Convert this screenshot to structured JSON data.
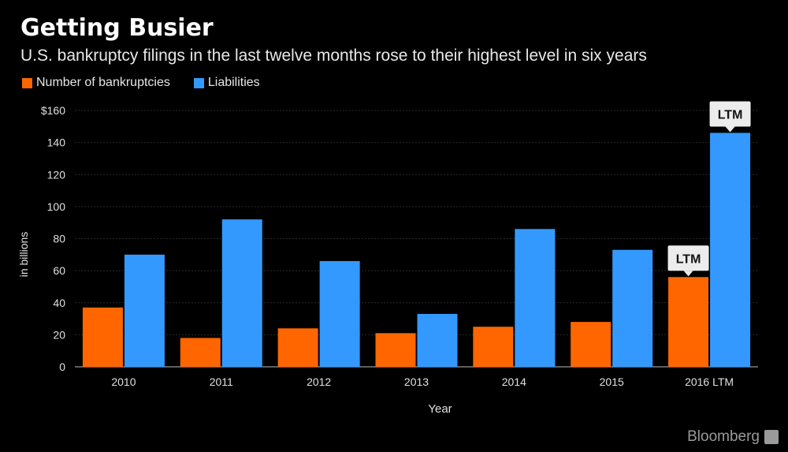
{
  "title": "Getting Busier",
  "subtitle": "U.S. bankruptcy filings in the last twelve months rose to their highest level in six years",
  "brand": "Bloomberg",
  "colors": {
    "bankruptcies": "#ff6600",
    "liabilities": "#3399ff",
    "background": "#000000"
  },
  "chart_data": {
    "type": "bar",
    "title": "Getting Busier",
    "subtitle": "U.S. bankruptcy filings in the last twelve months rose to their highest level in six years",
    "xlabel": "Year",
    "ylabel": "in billions",
    "ylim": [
      0,
      160
    ],
    "yticks": [
      "0",
      "20",
      "40",
      "60",
      "80",
      "100",
      "120",
      "140",
      "$160"
    ],
    "ytick_values": [
      0,
      20,
      40,
      60,
      80,
      100,
      120,
      140,
      160
    ],
    "categories": [
      "2010",
      "2011",
      "2012",
      "2013",
      "2014",
      "2015",
      "2016 LTM"
    ],
    "series": [
      {
        "name": "Number of bankruptcies",
        "color": "#ff6600",
        "values": [
          37,
          18,
          24,
          21,
          25,
          28,
          56
        ]
      },
      {
        "name": "Liabilities",
        "color": "#3399ff",
        "values": [
          70,
          92,
          66,
          33,
          86,
          73,
          146
        ]
      }
    ],
    "annotations": [
      {
        "text": "LTM",
        "series": 0,
        "category": "2016 LTM"
      },
      {
        "text": "LTM",
        "series": 1,
        "category": "2016 LTM"
      }
    ],
    "legend_position": "top-left",
    "grid": true
  }
}
